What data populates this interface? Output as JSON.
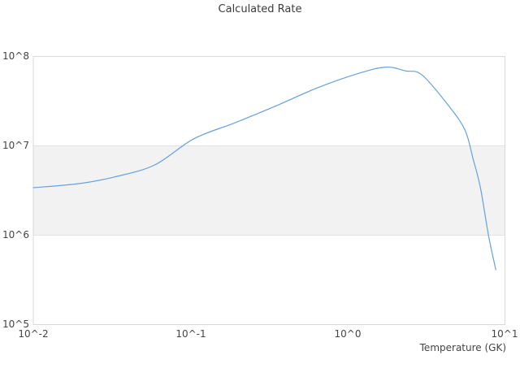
{
  "chart_data": {
    "type": "line",
    "title": "Calculated Rate",
    "xlabel": "Temperature (GK)",
    "ylabel": "",
    "x_scale": "log",
    "y_scale": "log",
    "xlim": [
      0.01,
      10
    ],
    "ylim": [
      100000.0,
      100000000.0
    ],
    "x_tick_labels": [
      "10^-2",
      "10^-1",
      "10^0",
      "10^1"
    ],
    "y_tick_labels": [
      "10^8",
      "10^7",
      "10^6",
      "10^5"
    ],
    "grid": false,
    "legend": "none",
    "band": {
      "y_from": 1000000.0,
      "y_to": 10000000.0,
      "fill": "#f2f2f2",
      "edge": "#e3e3e3"
    },
    "series": [
      {
        "name": "calculated-rate",
        "color": "#64a1dd",
        "x": [
          0.01,
          0.02,
          0.033,
          0.059,
          0.105,
          0.19,
          0.35,
          0.63,
          1.15,
          1.74,
          2.33,
          2.97,
          4.39,
          5.57,
          6.26,
          6.98,
          7.87,
          8.75
        ],
        "y": [
          3400000.0,
          3800000.0,
          4500000.0,
          6100000.0,
          12000000.0,
          18000000.0,
          28000000.0,
          44000000.0,
          64000000.0,
          76000000.0,
          69000000.0,
          62000000.0,
          28000000.0,
          15000000.0,
          7200000.0,
          3400000.0,
          980000.0,
          410000.0
        ]
      }
    ]
  },
  "colors": {
    "background": "#ffffff",
    "plot_border": "#d9d9d9",
    "tick_label": "#444444",
    "title": "#3b3b3b"
  }
}
